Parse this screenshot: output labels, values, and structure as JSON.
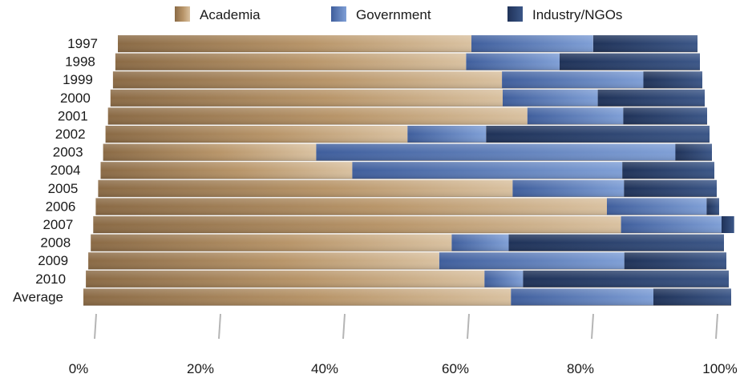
{
  "chart_data": {
    "type": "bar",
    "orientation": "horizontal",
    "stacked": true,
    "categories": [
      "1997",
      "1998",
      "1999",
      "2000",
      "2001",
      "2002",
      "2003",
      "2004",
      "2005",
      "2006",
      "2007",
      "2008",
      "2009",
      "2010",
      "Average"
    ],
    "series": [
      {
        "name": "Academia",
        "color": "#a8845a",
        "values": [
          61,
          60,
          66,
          66,
          70,
          50,
          35,
          41,
          67,
          82,
          84,
          57,
          55,
          62,
          66
        ]
      },
      {
        "name": "Government",
        "color": "#5b7bb8",
        "values": [
          21,
          16,
          24,
          16,
          16,
          13,
          59,
          44,
          18,
          16,
          16,
          9,
          29,
          6,
          22
        ]
      },
      {
        "name": "Industry/NGOs",
        "color": "#2d4370",
        "values": [
          18,
          24,
          10,
          18,
          14,
          37,
          6,
          15,
          15,
          2,
          2,
          34,
          16,
          32,
          12
        ]
      }
    ],
    "xlim": [
      0,
      100
    ],
    "xticks": [
      "0%",
      "20%",
      "40%",
      "60%",
      "80%",
      "100%"
    ],
    "legend_position": "top",
    "grid": false
  }
}
